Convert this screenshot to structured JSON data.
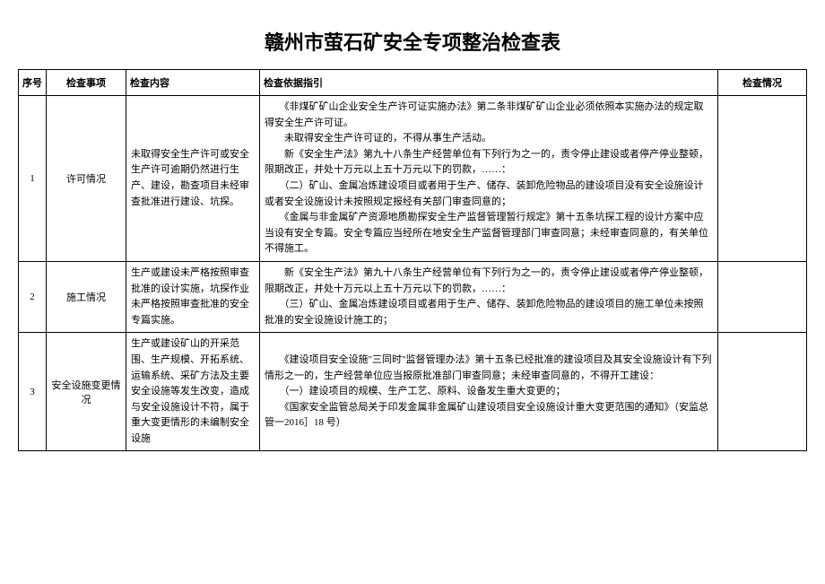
{
  "title": "赣州市萤石矿安全专项整治检查表",
  "headers": {
    "seq": "序号",
    "item": "检查事项",
    "content": "检查内容",
    "basis": "检查依据指引",
    "status": "检查情况"
  },
  "rows": [
    {
      "seq": "1",
      "item": "许可情况",
      "content": "未取得安全生产许可或安全生产许可逾期仍然进行生产、建设，勘查项目未经审查批准进行建设、坑探。",
      "basis": "　　《非煤矿矿山企业安全生产许可证实施办法》第二条非煤矿矿山企业必须依照本实施办法的规定取得安全生产许可证。\n　　未取得安全生产许可证的，不得从事生产活动。\n　　新《安全生产法》第九十八条生产经营单位有下列行为之一的，责令停止建设或者停产停业整顿，限期改正，并处十万元以上五十万元以下的罚款，……：\n　　（二）矿山、金属冶炼建设项目或者用于生产、储存、装卸危险物品的建设项目没有安全设施设计或者安全设施设计未按照规定报经有关部门审查同意的；\n　　《金属与非金属矿产资源地质勘探安全生产监督管理暂行规定》第十五条坑探工程的设计方案中应当设有安全专篇。安全专篇应当经所在地安全生产监督管理部门审查同意；未经审查同意的，有关单位不得施工。"
    },
    {
      "seq": "2",
      "item": "施工情况",
      "content": "生产或建设未严格按照审查批准的设计实施，坑探作业未严格按照审查批准的安全专篇实施。",
      "basis": "　　新《安全生产法》第九十八条生产经营单位有下列行为之一的，责令停止建设或者停产停业整顿，限期改正，并处十万元以上五十万元以下的罚款，……：\n　　（三）矿山、金属冶炼建设项目或者用于生产、储存、装卸危险物品的建设项目的施工单位未按照批准的安全设施设计施工的；"
    },
    {
      "seq": "3",
      "item": "安全设施变更情况",
      "content": "生产或建设矿山的开采范围、生产规模、开拓系统、运输系统、采矿方法及主要安全设施等发生改变，造成与安全设施设计不符，属于重大变更情形的未编制安全设施",
      "basis": "　　《建设项目安全设施\"三同时\"监督管理办法》第十五条已经批准的建设项目及其安全设施设计有下列情形之一的，生产经营单位应当报原批准部门审查同意；未经审查同意的，不得开工建设：\n　　（一）建设项目的规模、生产工艺、原料、设备发生重大变更的；\n　　《国家安全监管总局关于印发金属非金属矿山建设项目安全设施设计重大变更范围的通知》（安监总管一2016］18 号）"
    }
  ]
}
